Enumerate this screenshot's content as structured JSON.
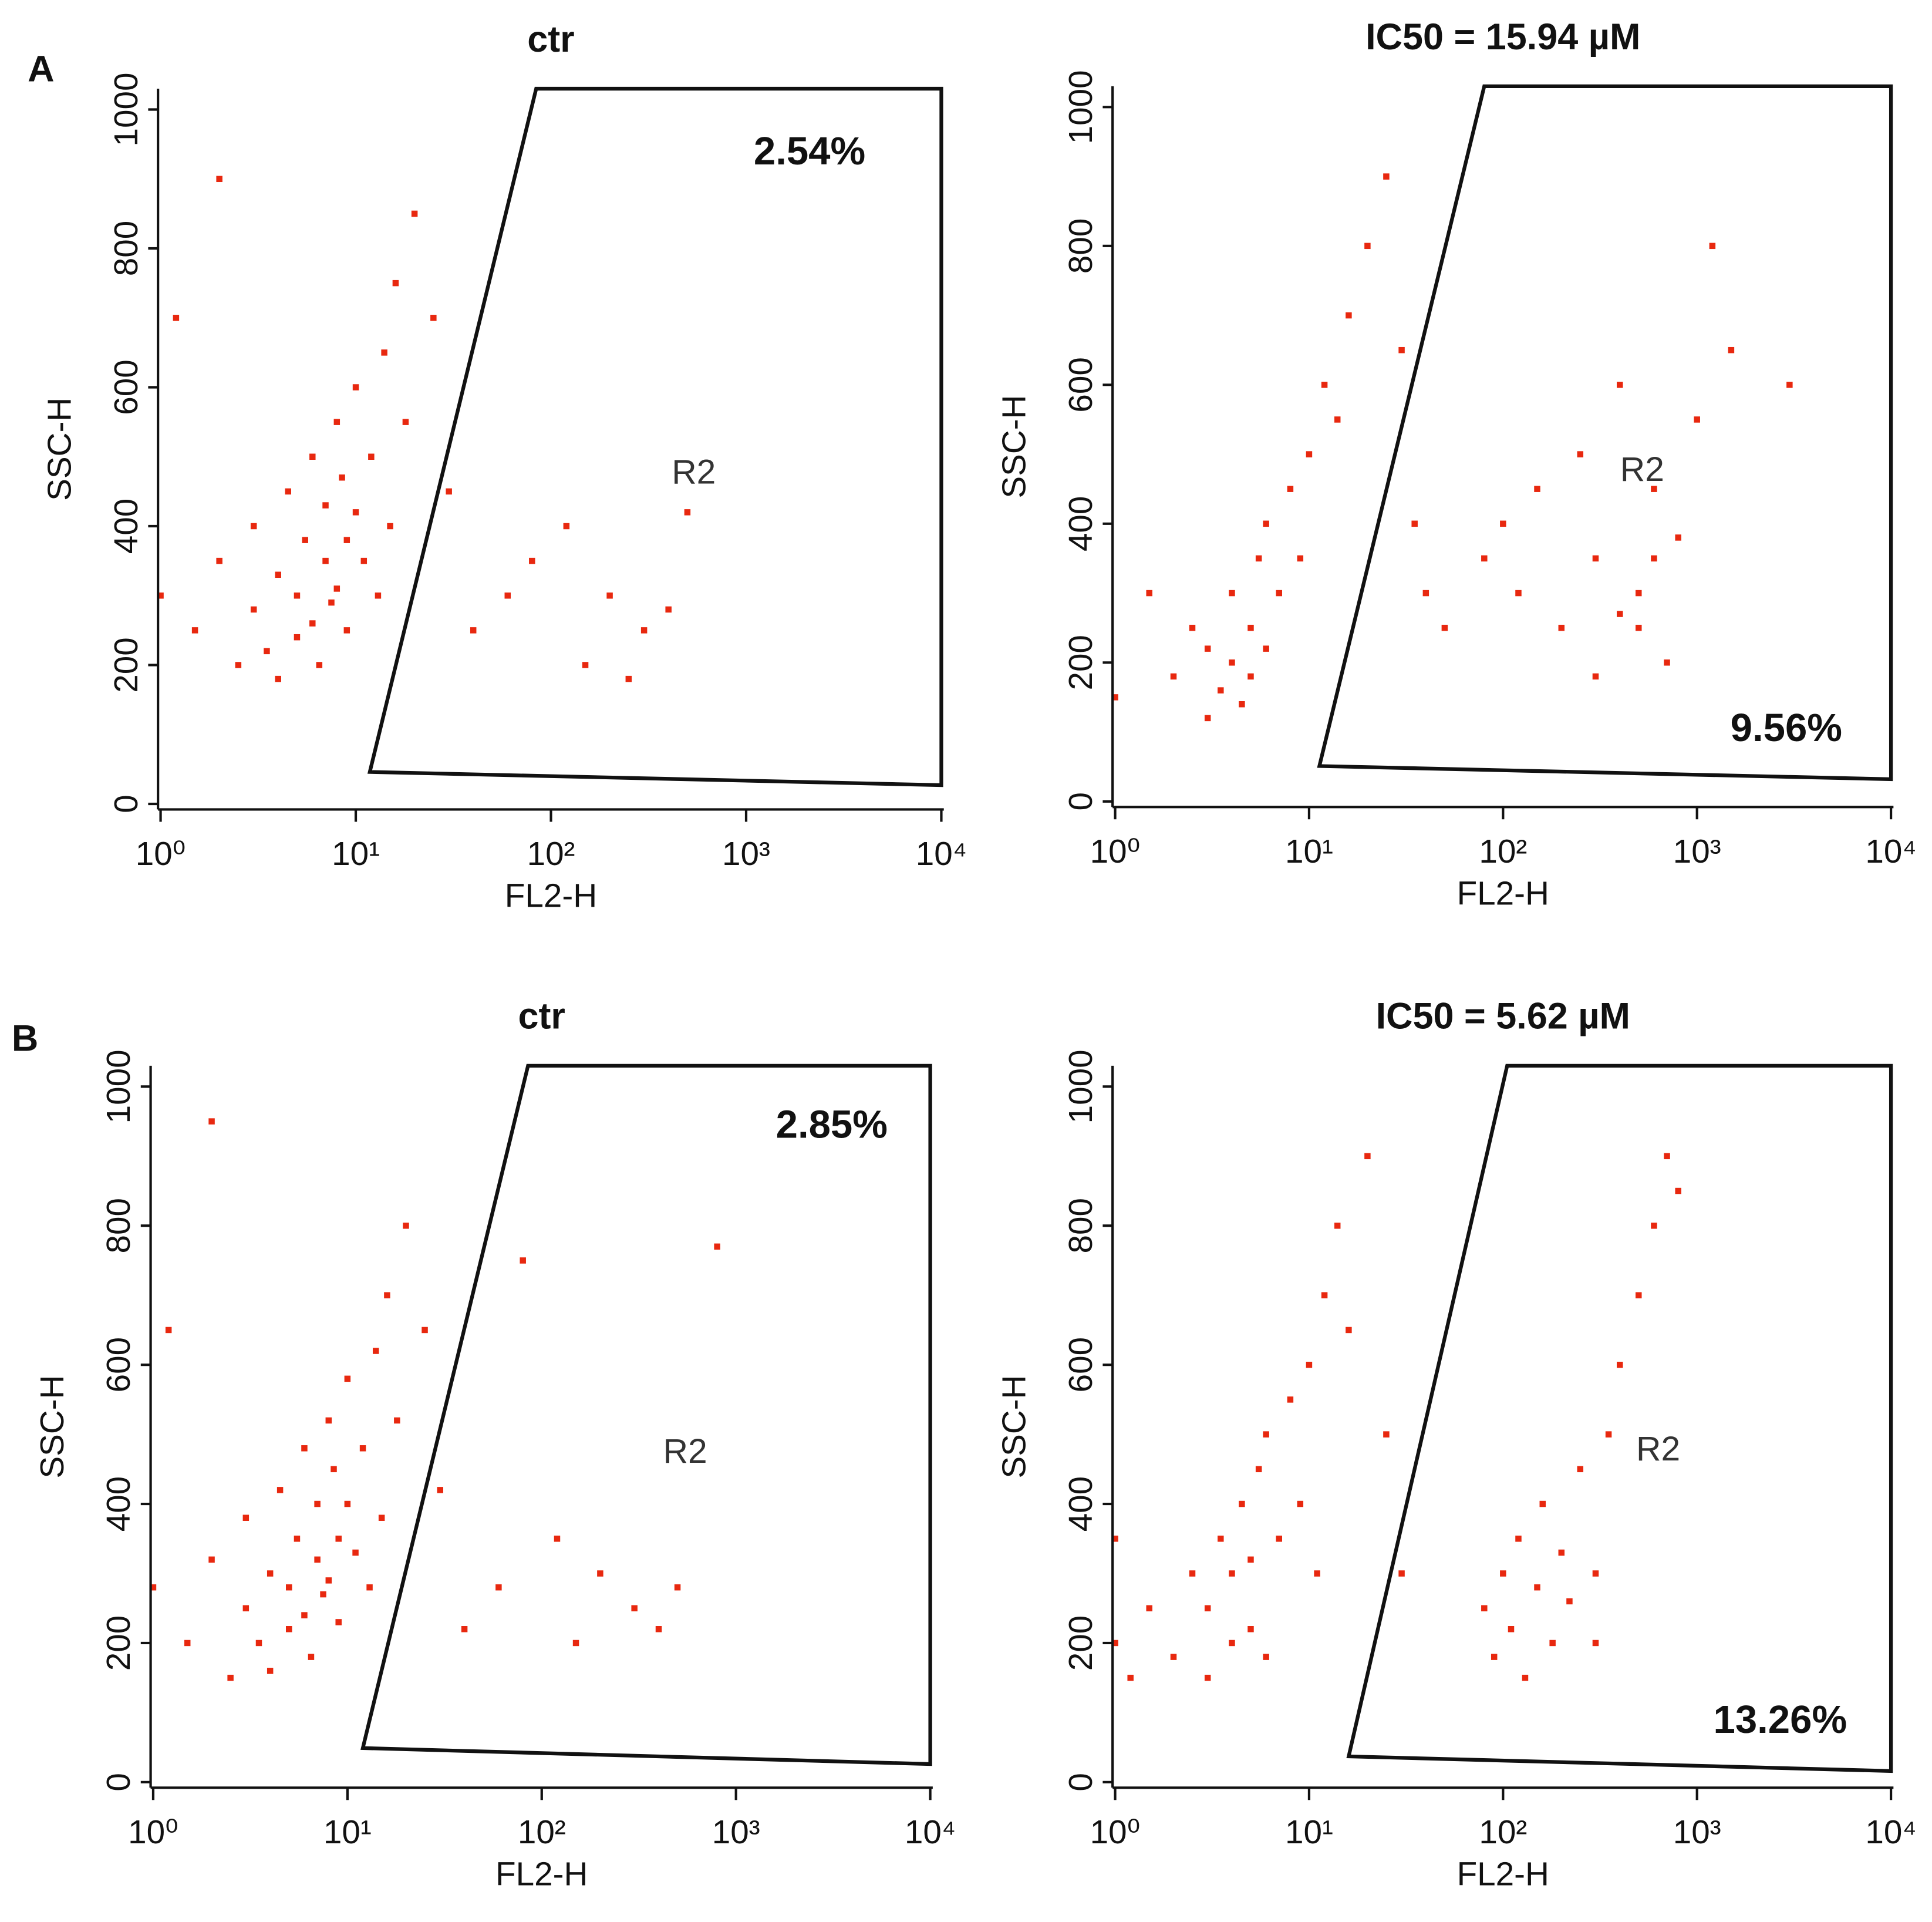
{
  "panel_labels": [
    "A",
    "B"
  ],
  "chart_data": [
    {
      "type": "scatter",
      "title": "ctr",
      "xlabel": "FL2-H",
      "ylabel": "SSC-H",
      "xscale": "log",
      "color": "#e8280f",
      "xlim": [
        0.97,
        10300
      ],
      "ylim": [
        -8,
        1030
      ],
      "xticks": [
        {
          "value": 1,
          "label": "10⁰"
        },
        {
          "value": 10,
          "label": "10¹"
        },
        {
          "value": 100,
          "label": "10²"
        },
        {
          "value": 1000,
          "label": "10³"
        },
        {
          "value": 10000,
          "label": "10⁴"
        }
      ],
      "yticks": [
        0,
        200,
        400,
        600,
        800,
        1000
      ],
      "percent": "2.54%",
      "region": "R2",
      "gate": {
        "x": [
          84,
          10000,
          10000,
          11.8
        ],
        "y": [
          1030,
          1030,
          27,
          46
        ]
      },
      "x": [
        1,
        1.5,
        2,
        2.5,
        3,
        3,
        3.5,
        4,
        4,
        4.5,
        5,
        5,
        5.5,
        6,
        6,
        6.5,
        7,
        7,
        7.5,
        8,
        8,
        8.5,
        9,
        9,
        10,
        10,
        11,
        12,
        13,
        14,
        15,
        16,
        18,
        20,
        25,
        30,
        40,
        60,
        80,
        120,
        150,
        200,
        250,
        300,
        400,
        500,
        2,
        1.2
      ],
      "y": [
        300,
        250,
        350,
        200,
        280,
        400,
        220,
        330,
        180,
        450,
        300,
        240,
        380,
        260,
        500,
        200,
        350,
        430,
        290,
        550,
        310,
        470,
        380,
        250,
        600,
        420,
        350,
        500,
        300,
        650,
        400,
        750,
        550,
        850,
        700,
        450,
        250,
        300,
        350,
        400,
        200,
        300,
        180,
        250,
        280,
        420,
        900,
        700
      ]
    },
    {
      "type": "scatter",
      "title": "IC50 = 15.94 µM",
      "xlabel": "FL2-H",
      "ylabel": "SSC-H",
      "xscale": "log",
      "color": "#e8280f",
      "xlim": [
        0.97,
        10300
      ],
      "ylim": [
        -8,
        1030
      ],
      "xticks": [
        {
          "value": 1,
          "label": "10⁰"
        },
        {
          "value": 10,
          "label": "10¹"
        },
        {
          "value": 100,
          "label": "10²"
        },
        {
          "value": 1000,
          "label": "10³"
        },
        {
          "value": 10000,
          "label": "10⁴"
        }
      ],
      "yticks": [
        0,
        200,
        400,
        600,
        800,
        1000
      ],
      "percent": "9.56%",
      "region": "R2",
      "gate": {
        "x": [
          80,
          10000,
          10000,
          11.3
        ],
        "y": [
          1030,
          1030,
          32,
          51
        ]
      },
      "x": [
        1,
        1.5,
        2,
        2.5,
        3,
        3,
        3.5,
        4,
        4,
        4.5,
        5,
        5,
        5.5,
        6,
        6,
        7,
        8,
        9,
        10,
        12,
        14,
        16,
        20,
        25,
        30,
        35,
        40,
        50,
        80,
        100,
        120,
        150,
        200,
        300,
        400,
        500,
        600,
        700,
        800,
        1000,
        1200,
        500,
        400,
        300,
        250,
        600,
        1500,
        3000
      ],
      "y": [
        150,
        300,
        180,
        250,
        120,
        220,
        160,
        200,
        300,
        140,
        250,
        180,
        350,
        220,
        400,
        300,
        450,
        350,
        500,
        600,
        550,
        700,
        800,
        900,
        650,
        400,
        300,
        250,
        350,
        400,
        300,
        450,
        250,
        350,
        270,
        300,
        450,
        200,
        380,
        550,
        800,
        250,
        600,
        180,
        500,
        350,
        650,
        600
      ]
    },
    {
      "type": "scatter",
      "title": "ctr",
      "xlabel": "FL2-H",
      "ylabel": "SSC-H",
      "xscale": "log",
      "color": "#e8280f",
      "xlim": [
        0.97,
        10300
      ],
      "ylim": [
        -8,
        1030
      ],
      "xticks": [
        {
          "value": 1,
          "label": "10⁰"
        },
        {
          "value": 10,
          "label": "10¹"
        },
        {
          "value": 100,
          "label": "10²"
        },
        {
          "value": 1000,
          "label": "10³"
        },
        {
          "value": 10000,
          "label": "10⁴"
        }
      ],
      "yticks": [
        0,
        200,
        400,
        600,
        800,
        1000
      ],
      "percent": "2.85%",
      "region": "R2",
      "gate": {
        "x": [
          85,
          10000,
          10000,
          12
        ],
        "y": [
          1030,
          1030,
          26,
          49
        ]
      },
      "x": [
        1,
        1.5,
        2,
        2.5,
        3,
        3,
        3.5,
        4,
        4,
        4.5,
        5,
        5,
        5.5,
        6,
        6,
        6.5,
        7,
        7,
        7.5,
        8,
        8,
        8.5,
        9,
        9,
        10,
        10,
        11,
        12,
        13,
        14,
        15,
        16,
        18,
        20,
        25,
        30,
        40,
        60,
        80,
        120,
        150,
        200,
        300,
        400,
        500,
        800,
        2,
        1.2
      ],
      "y": [
        280,
        200,
        320,
        150,
        250,
        380,
        200,
        300,
        160,
        420,
        280,
        220,
        350,
        240,
        480,
        180,
        320,
        400,
        270,
        520,
        290,
        450,
        350,
        230,
        580,
        400,
        330,
        480,
        280,
        620,
        380,
        700,
        520,
        800,
        650,
        420,
        220,
        280,
        750,
        350,
        200,
        300,
        250,
        220,
        280,
        770,
        950,
        650
      ]
    },
    {
      "type": "scatter",
      "title": "IC50 = 5.62 µM",
      "xlabel": "FL2-H",
      "ylabel": "SSC-H",
      "xscale": "log",
      "color": "#e8280f",
      "xlim": [
        0.97,
        10300
      ],
      "ylim": [
        -8,
        1030
      ],
      "xticks": [
        {
          "value": 1,
          "label": "10⁰"
        },
        {
          "value": 10,
          "label": "10¹"
        },
        {
          "value": 100,
          "label": "10²"
        },
        {
          "value": 1000,
          "label": "10³"
        },
        {
          "value": 10000,
          "label": "10⁴"
        }
      ],
      "yticks": [
        0,
        200,
        400,
        600,
        800,
        1000
      ],
      "percent": "13.26%",
      "region": "R2",
      "gate": {
        "x": [
          105,
          10000,
          10000,
          16
        ],
        "y": [
          1030,
          1030,
          16,
          37
        ]
      },
      "x": [
        1,
        1.5,
        2,
        2.5,
        3,
        3,
        3.5,
        4,
        4,
        4.5,
        5,
        5,
        5.5,
        6,
        6,
        7,
        8,
        9,
        10,
        11,
        12,
        14,
        16,
        20,
        25,
        30,
        80,
        90,
        100,
        110,
        120,
        130,
        150,
        160,
        180,
        200,
        220,
        250,
        300,
        350,
        400,
        500,
        600,
        700,
        800,
        300,
        1,
        1.2
      ],
      "y": [
        200,
        250,
        180,
        300,
        150,
        250,
        350,
        200,
        300,
        400,
        220,
        320,
        450,
        180,
        500,
        350,
        550,
        400,
        600,
        300,
        700,
        800,
        650,
        900,
        500,
        300,
        250,
        180,
        300,
        220,
        350,
        150,
        280,
        400,
        200,
        330,
        260,
        450,
        300,
        500,
        600,
        700,
        800,
        900,
        850,
        200,
        350,
        150
      ]
    }
  ]
}
